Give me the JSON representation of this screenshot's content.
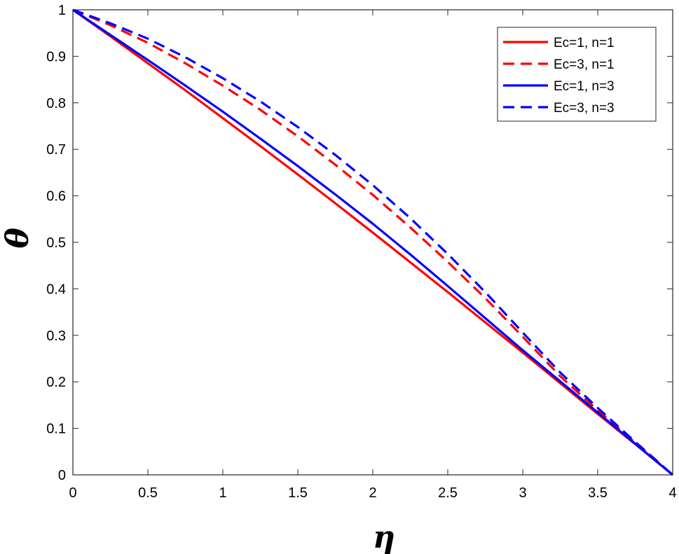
{
  "chart_data": {
    "type": "line",
    "xlabel": "η",
    "ylabel": "θ",
    "xlim": [
      0,
      4
    ],
    "ylim": [
      0,
      1
    ],
    "xticks": [
      0,
      0.5,
      1,
      1.5,
      2,
      2.5,
      3,
      3.5,
      4
    ],
    "xtick_labels": [
      "0",
      "0.5",
      "1",
      "1.5",
      "2",
      "2.5",
      "3",
      "3.5",
      "4"
    ],
    "yticks": [
      0,
      0.1,
      0.2,
      0.3,
      0.4,
      0.5,
      0.6,
      0.7,
      0.8,
      0.9,
      1
    ],
    "ytick_labels": [
      "0",
      "0.1",
      "0.2",
      "0.3",
      "0.4",
      "0.5",
      "0.6",
      "0.7",
      "0.8",
      "0.9",
      "1"
    ],
    "grid": false,
    "legend_position": "top-right",
    "x": [
      0,
      0.25,
      0.5,
      0.75,
      1,
      1.25,
      1.5,
      1.75,
      2,
      2.25,
      2.5,
      2.75,
      3,
      3.25,
      3.5,
      3.75,
      4
    ],
    "series": [
      {
        "name": "Ec=1, n=1",
        "color": "#ff0000",
        "dash": "solid",
        "values": [
          1,
          0.943,
          0.885,
          0.827,
          0.767,
          0.707,
          0.646,
          0.584,
          0.521,
          0.457,
          0.393,
          0.328,
          0.263,
          0.197,
          0.131,
          0.066,
          0
        ]
      },
      {
        "name": "Ec=3, n=1",
        "color": "#ff0000",
        "dash": "dashed",
        "values": [
          1,
          0.967,
          0.929,
          0.885,
          0.837,
          0.785,
          0.728,
          0.667,
          0.602,
          0.532,
          0.458,
          0.38,
          0.297,
          0.212,
          0.139,
          0.069,
          0
        ]
      },
      {
        "name": "Ec=1, n=3",
        "color": "#0000ff",
        "dash": "solid",
        "values": [
          1,
          0.946,
          0.892,
          0.837,
          0.781,
          0.723,
          0.664,
          0.603,
          0.54,
          0.474,
          0.406,
          0.337,
          0.268,
          0.201,
          0.134,
          0.067,
          0
        ]
      },
      {
        "name": "Ec=3, n=3",
        "color": "#0000ff",
        "dash": "dashed",
        "values": [
          1,
          0.971,
          0.938,
          0.898,
          0.853,
          0.803,
          0.748,
          0.688,
          0.623,
          0.552,
          0.475,
          0.393,
          0.306,
          0.22,
          0.144,
          0.071,
          0
        ]
      }
    ]
  }
}
